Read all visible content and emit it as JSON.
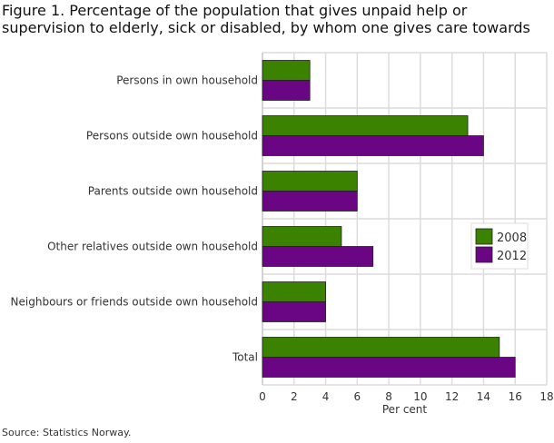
{
  "chart_data": {
    "type": "bar",
    "orientation": "horizontal",
    "title": "Figure 1. Percentage of the population that gives unpaid help or supervision to elderly, sick or disabled, by whom one gives care towards",
    "categories": [
      "Persons in own household",
      "Persons outside own household",
      "Parents outside own household",
      "Other relatives outside own household",
      "Neighbours or friends outside own household",
      "Total"
    ],
    "series": [
      {
        "name": "2008",
        "color": "#3a8200",
        "values": [
          3,
          13,
          6,
          5,
          4,
          15
        ]
      },
      {
        "name": "2012",
        "color": "#6a0683",
        "values": [
          3,
          14,
          6,
          7,
          4,
          16
        ]
      }
    ],
    "xlabel": "Per cent",
    "xlim": [
      0,
      18
    ],
    "xticks": [
      0,
      2,
      4,
      6,
      8,
      10,
      12,
      14,
      16,
      18
    ],
    "grid": true,
    "legend": "right"
  },
  "source": "Source: Statistics Norway."
}
